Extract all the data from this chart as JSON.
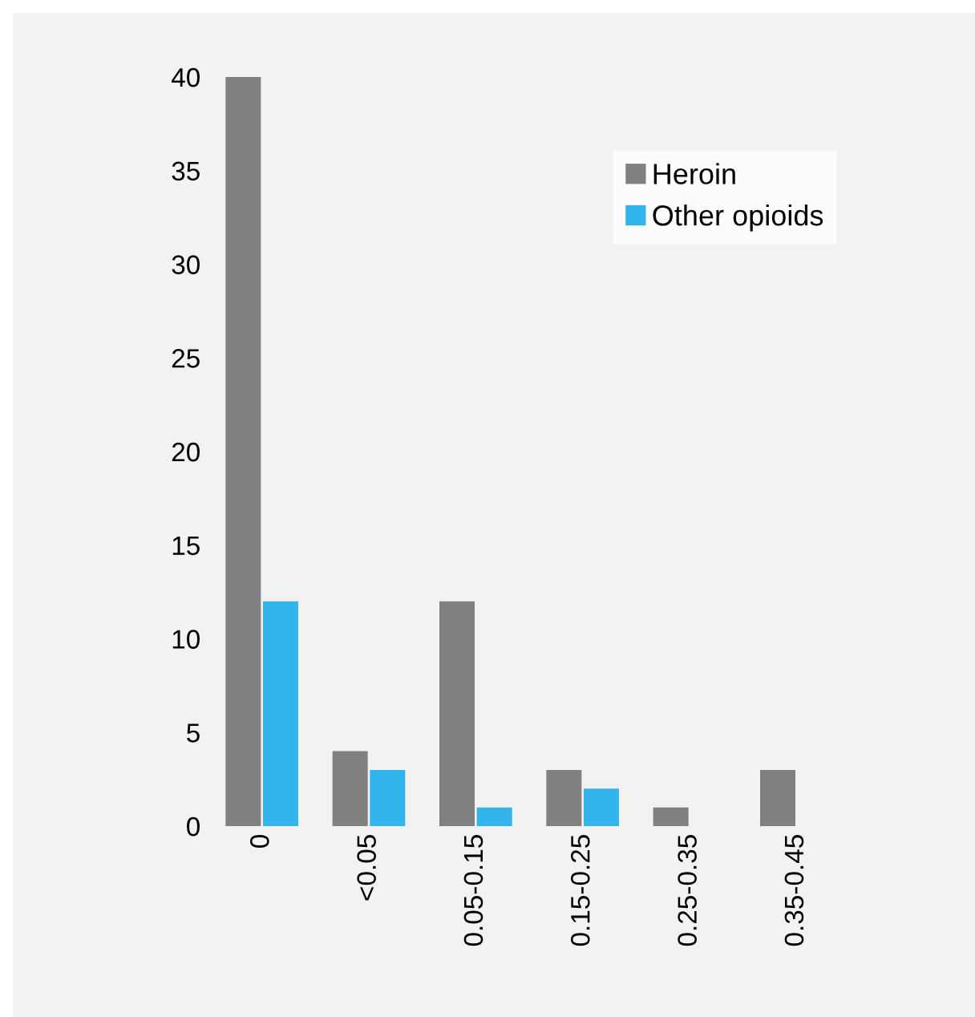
{
  "chart_data": {
    "type": "bar",
    "categories": [
      "0",
      "<0.05",
      "0.05-0.15",
      "0.15-0.25",
      "0.25-0.35",
      "0.35-0.45"
    ],
    "series": [
      {
        "name": "Heroin",
        "color": "#808080",
        "values": [
          40,
          4,
          12,
          3,
          1,
          3
        ]
      },
      {
        "name": "Other opioids",
        "color": "#33b4ea",
        "values": [
          12,
          3,
          1,
          2,
          0,
          0
        ]
      }
    ],
    "ylim": [
      0,
      40
    ],
    "yticks": [
      0,
      5,
      10,
      15,
      20,
      25,
      30,
      35,
      40
    ],
    "grid": false,
    "legend": "top right"
  }
}
